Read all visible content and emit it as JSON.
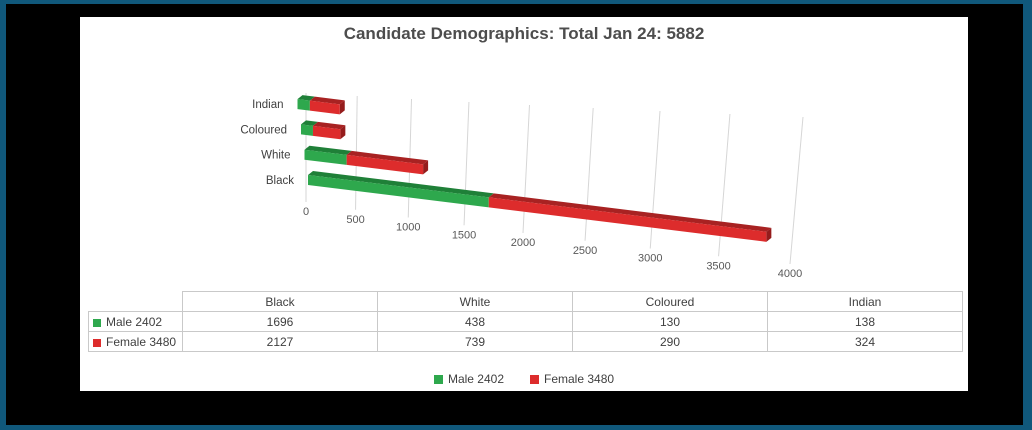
{
  "frame": {
    "border_color": "#10587B",
    "background": "#000000",
    "panel_background": "#FFFFFF"
  },
  "chart_data": {
    "type": "bar",
    "variant": "3d-horizontal-stacked",
    "title": "Candidate Demographics: Total Jan 24: 5882",
    "total": 5882,
    "categories": [
      "Black",
      "White",
      "Coloured",
      "Indian"
    ],
    "series": [
      {
        "name": "Male 2402",
        "values": [
          1696,
          438,
          130,
          138
        ],
        "color": "#2EA84D",
        "color_top": "#1F8038",
        "color_cap": "#176A2E"
      },
      {
        "name": "Female 3480",
        "values": [
          2127,
          739,
          290,
          324
        ],
        "color": "#DD2C2C",
        "color_top": "#A82222",
        "color_cap": "#951C1C"
      }
    ],
    "axis": {
      "min": 0,
      "max": 4000,
      "tick_step": 500,
      "ticks": [
        0,
        500,
        1000,
        1500,
        2000,
        2500,
        3000,
        3500,
        4000
      ]
    },
    "grid": true,
    "gridline_color": "#d6d6d6",
    "tick_label_color": "#595959",
    "category_label_color": "#404040",
    "legend_position": "bottom"
  },
  "table": {
    "headers": [
      "",
      "Black",
      "White",
      "Coloured",
      "Indian"
    ],
    "rows": [
      {
        "label": "Male 2402",
        "key_color": "#2EA84D",
        "values": [
          "1696",
          "438",
          "130",
          "138"
        ]
      },
      {
        "label": "Female 3480",
        "key_color": "#DD2C2C",
        "values": [
          "2127",
          "739",
          "290",
          "324"
        ]
      }
    ]
  },
  "legend": {
    "items": [
      {
        "label": "Male 2402",
        "color": "#2EA84D"
      },
      {
        "label": "Female 3480",
        "color": "#DD2C2C"
      }
    ]
  }
}
